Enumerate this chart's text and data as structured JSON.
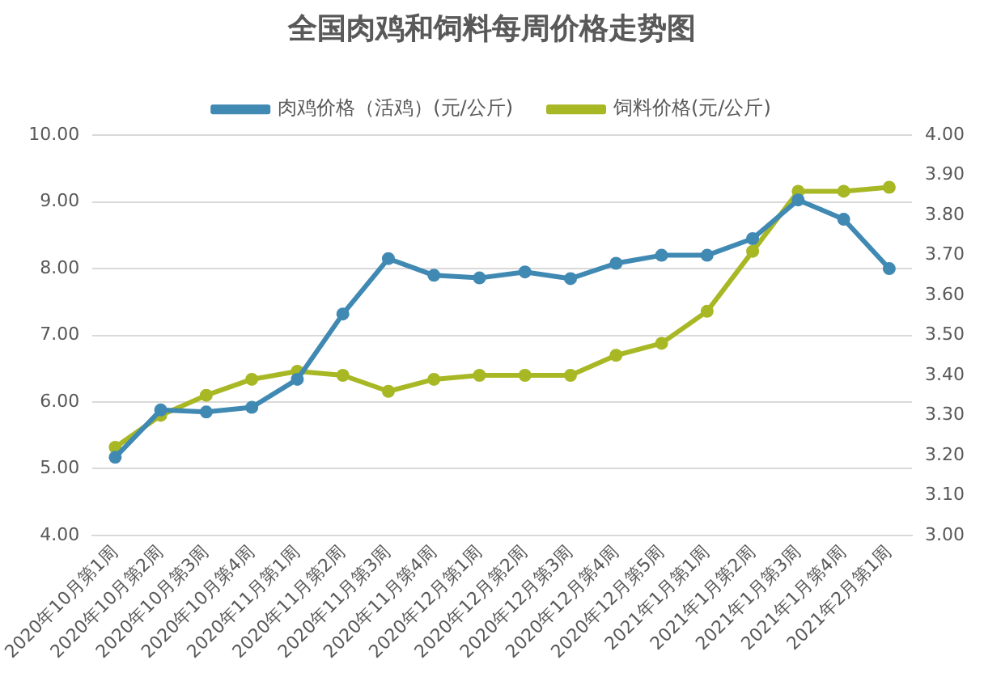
{
  "chart_data": {
    "type": "line",
    "title": "全国肉鸡和饲料每周价格走势图",
    "categories": [
      "2020年10月第1周",
      "2020年10月第2周",
      "2020年10月第3周",
      "2020年10月第4周",
      "2020年11月第1周",
      "2020年11月第2周",
      "2020年11月第3周",
      "2020年11月第4周",
      "2020年12月第1周",
      "2020年12月第2周",
      "2020年12月第3周",
      "2020年12月第4周",
      "2020年12月第5周",
      "2021年1月第1周",
      "2021年1月第2周",
      "2021年1月第3周",
      "2021年1月第4周",
      "2021年2月第1周"
    ],
    "series": [
      {
        "name": "肉鸡价格（活鸡）(元/公斤)",
        "color": "#3f89b3",
        "values": [
          5.17,
          5.88,
          5.85,
          5.92,
          6.34,
          7.32,
          8.15,
          7.9,
          7.86,
          7.95,
          7.85,
          8.08,
          8.2,
          8.2,
          8.45,
          9.03,
          8.74,
          8.0
        ]
      },
      {
        "name": "饲料价格(元/公斤)",
        "color": "#a8b825",
        "axis": "y2",
        "values": [
          3.22,
          3.3,
          3.35,
          3.39,
          3.41,
          3.4,
          3.36,
          3.39,
          3.4,
          3.4,
          3.4,
          3.45,
          3.48,
          3.56,
          3.71,
          3.86,
          3.86,
          3.87
        ]
      }
    ],
    "ylim": [
      4,
      10
    ],
    "yticks": [
      {
        "value": 4,
        "label": "4.00"
      },
      {
        "value": 5,
        "label": "5.00"
      },
      {
        "value": 6,
        "label": "6.00"
      },
      {
        "value": 7,
        "label": "7.00"
      },
      {
        "value": 8,
        "label": "8.00"
      },
      {
        "value": 9,
        "label": "9.00"
      },
      {
        "value": 10,
        "label": "10.00"
      }
    ],
    "y2lim": [
      3,
      4
    ],
    "y2ticks": [
      {
        "value": 3,
        "label": "3.00"
      },
      {
        "value": 3.1,
        "label": "3.10"
      },
      {
        "value": 3.2,
        "label": "3.20"
      },
      {
        "value": 3.3,
        "label": "3.30"
      },
      {
        "value": 3.4,
        "label": "3.40"
      },
      {
        "value": 3.5,
        "label": "3.50"
      },
      {
        "value": 3.6,
        "label": "3.60"
      },
      {
        "value": 3.7,
        "label": "3.70"
      },
      {
        "value": 3.8,
        "label": "3.80"
      },
      {
        "value": 3.9,
        "label": "3.90"
      },
      {
        "value": 4,
        "label": "4.00"
      }
    ],
    "grid": "y",
    "legend": "top",
    "marker": "circle",
    "line_style": "solid"
  }
}
